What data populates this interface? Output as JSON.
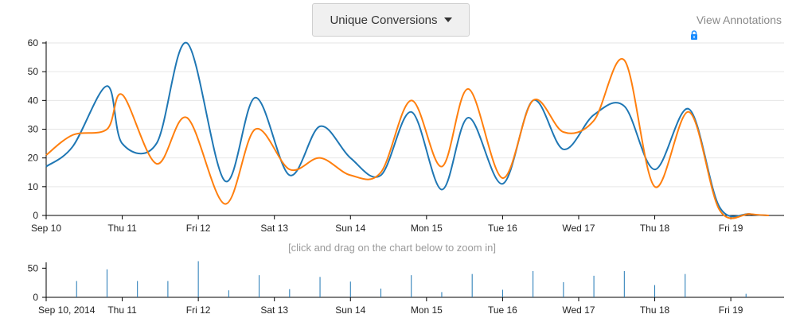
{
  "controls": {
    "metric_label": "Unique Conversions",
    "annotations_label": "View Annotations",
    "zoom_hint": "[click and drag on the chart below to zoom in]"
  },
  "colors": {
    "series_blue": "#1f77b4",
    "series_orange": "#ff7f0e",
    "axis": "#000000",
    "grid": "#e6e6e6",
    "lock_icon": "#1a8cff"
  },
  "icons": {
    "lock": "lock-icon",
    "caret": "caret-down-icon"
  },
  "chart_data": [
    {
      "type": "line",
      "title": "",
      "xlabel": "",
      "ylabel": "",
      "x_ticks": [
        "Sep 10",
        "Thu 11",
        "Fri 12",
        "Sat 13",
        "Sun 14",
        "Mon 15",
        "Tue 16",
        "Wed 17",
        "Thu 18",
        "Fri 19"
      ],
      "ylim": [
        0,
        60
      ],
      "y_ticks": [
        0,
        10,
        20,
        30,
        40,
        50,
        60
      ],
      "grid": true,
      "x_unit": "days since Sep 10",
      "series": [
        {
          "x": [
            0,
            0.35,
            0.8,
            1.0,
            1.45,
            1.85,
            2.35,
            2.75,
            3.2,
            3.6,
            4.0,
            4.4,
            4.8,
            5.2,
            5.55,
            6.0,
            6.4,
            6.8,
            7.2,
            7.6,
            8.0,
            8.45,
            8.85,
            9.25,
            9.5
          ],
          "y": [
            17,
            24,
            45,
            25,
            25,
            60,
            12,
            41,
            14,
            31,
            20,
            14,
            36,
            9,
            34,
            11,
            40,
            23,
            35,
            38,
            16,
            37,
            3,
            0.5,
            0
          ]
        },
        {
          "x": [
            0,
            0.35,
            0.8,
            1.0,
            1.45,
            1.85,
            2.35,
            2.75,
            3.2,
            3.6,
            4.0,
            4.4,
            4.8,
            5.2,
            5.55,
            6.0,
            6.4,
            6.8,
            7.2,
            7.6,
            8.0,
            8.45,
            8.85,
            9.25,
            9.5
          ],
          "y": [
            21,
            28,
            30,
            42,
            18,
            34,
            4,
            30,
            16,
            20,
            14,
            15,
            40,
            17,
            44,
            13,
            40,
            29,
            33,
            54,
            10,
            36,
            2,
            0.5,
            0
          ]
        }
      ]
    },
    {
      "type": "bar",
      "title": "",
      "x_ticks": [
        "Sep 10, 2014",
        "Thu 11",
        "Fri 12",
        "Sat 13",
        "Sun 14",
        "Mon 15",
        "Tue 16",
        "Wed 17",
        "Thu 18",
        "Fri 19"
      ],
      "ylim": [
        0,
        60
      ],
      "y_ticks": [
        0,
        50
      ],
      "x_unit": "days since Sep 10",
      "x": [
        0.0,
        0.4,
        0.8,
        1.2,
        1.6,
        2.0,
        2.4,
        2.8,
        3.2,
        3.6,
        4.0,
        4.4,
        4.8,
        5.2,
        5.6,
        6.0,
        6.4,
        6.8,
        7.2,
        7.6,
        8.0,
        8.4,
        8.8,
        9.2
      ],
      "values": [
        0,
        28,
        48,
        28,
        28,
        62,
        12,
        38,
        14,
        35,
        27,
        15,
        38,
        9,
        40,
        13,
        45,
        26,
        37,
        45,
        21,
        40,
        0,
        6
      ]
    }
  ]
}
